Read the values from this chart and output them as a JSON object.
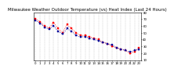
{
  "title": "Milwaukee Weather Outdoor Temperature (vs) Heat Index (Last 24 Hours)",
  "background_color": "#ffffff",
  "plot_bg_color": "#ffffff",
  "grid_color": "#aaaaaa",
  "temp_color": "#000099",
  "heat_color": "#ff0000",
  "hours": [
    0,
    1,
    2,
    3,
    4,
    5,
    6,
    7,
    8,
    9,
    10,
    11,
    12,
    13,
    14,
    15,
    16,
    17,
    18,
    19,
    20,
    21,
    22,
    23
  ],
  "temp": [
    68,
    64,
    58,
    55,
    60,
    52,
    48,
    56,
    52,
    46,
    44,
    44,
    42,
    40,
    38,
    36,
    34,
    32,
    28,
    26,
    24,
    22,
    24,
    26
  ],
  "heat": [
    70,
    66,
    60,
    57,
    65,
    56,
    50,
    62,
    56,
    50,
    46,
    46,
    44,
    42,
    40,
    36,
    34,
    30,
    28,
    26,
    24,
    20,
    22,
    28
  ],
  "ylim_min": 10,
  "ylim_max": 80,
  "yticks": [
    10,
    20,
    30,
    40,
    50,
    60,
    70,
    80
  ],
  "title_fontsize": 4.0,
  "tick_fontsize": 2.8,
  "marker_size": 1.5,
  "linewidth": 0.6,
  "grid_linewidth": 0.3
}
